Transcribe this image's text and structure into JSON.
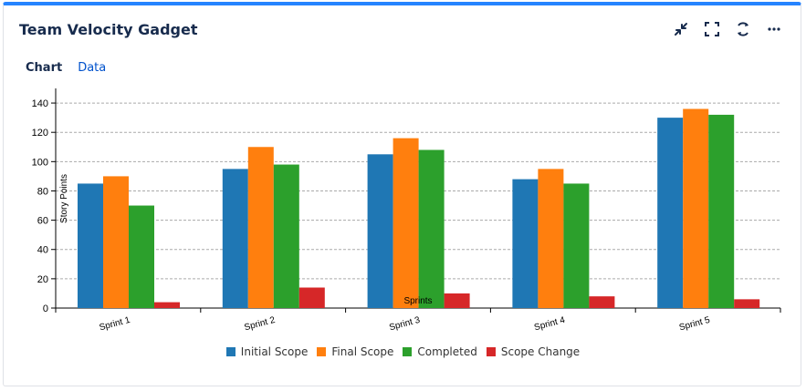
{
  "gadget": {
    "title": "Team Velocity Gadget",
    "toolbar": [
      {
        "name": "minimize-icon",
        "icon": "minimize"
      },
      {
        "name": "fullscreen-icon",
        "icon": "fullscreen"
      },
      {
        "name": "refresh-icon",
        "icon": "refresh"
      },
      {
        "name": "more-icon",
        "icon": "more"
      }
    ],
    "tabs": [
      {
        "label": "Chart",
        "active": true
      },
      {
        "label": "Data",
        "active": false
      }
    ]
  },
  "colors": {
    "accent": "#2684ff",
    "Initial Scope": "#1f77b4",
    "Final Scope": "#ff7f0e",
    "Completed": "#2ca02c",
    "Scope Change": "#d62728"
  },
  "chart_data": {
    "type": "bar",
    "categories": [
      "Sprint 1",
      "Sprint 2",
      "Sprint 3",
      "Sprint 4",
      "Sprint 5"
    ],
    "series": [
      {
        "name": "Initial Scope",
        "values": [
          85,
          95,
          105,
          88,
          130
        ]
      },
      {
        "name": "Final Scope",
        "values": [
          90,
          110,
          116,
          95,
          136
        ]
      },
      {
        "name": "Completed",
        "values": [
          70,
          98,
          108,
          85,
          132
        ]
      },
      {
        "name": "Scope Change",
        "values": [
          4,
          14,
          10,
          8,
          6
        ]
      }
    ],
    "xlabel": "Sprints",
    "ylabel": "Story Points",
    "ylim": [
      0,
      150
    ],
    "yticks": [
      0,
      20,
      40,
      60,
      80,
      100,
      120,
      140
    ],
    "grid": true,
    "legend": "bottom"
  }
}
